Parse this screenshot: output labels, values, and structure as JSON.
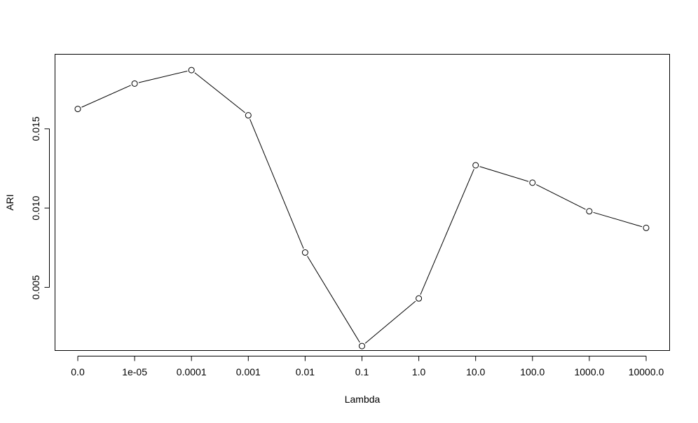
{
  "chart_data": {
    "type": "line",
    "title": "",
    "xlabel": "Lambda",
    "ylabel": "ARI",
    "categories": [
      "0.0",
      "1e-05",
      "0.0001",
      "0.001",
      "0.01",
      "0.1",
      "1.0",
      "10.0",
      "100.0",
      "1000.0",
      "10000.0"
    ],
    "values": [
      0.01625,
      0.01785,
      0.0187,
      0.01585,
      0.0072,
      0.0013,
      0.0043,
      0.0127,
      0.0116,
      0.0098,
      0.00875
    ],
    "ylim": [
      0.00104,
      0.01972
    ],
    "yticks": [
      0.005,
      0.01,
      0.015
    ],
    "ytick_labels": [
      "0.005",
      "0.010",
      "0.015"
    ],
    "grid": false,
    "legend": "none",
    "line_color": "#000000",
    "marker": "open-circle"
  }
}
